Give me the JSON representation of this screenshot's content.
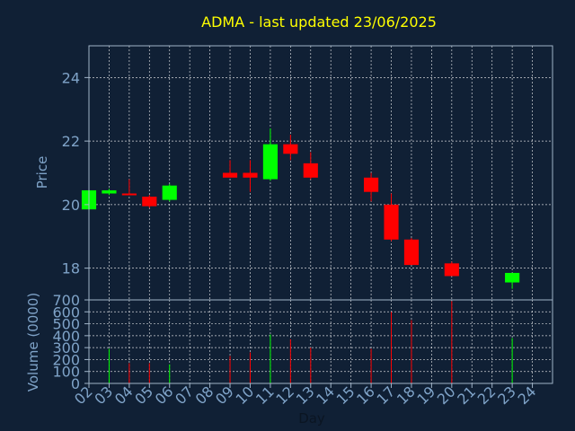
{
  "chart_data": [
    {
      "type": "candlestick",
      "title": "ADMA - last updated 23/06/2025",
      "ylabel": "Price",
      "ylim": [
        17,
        25
      ],
      "yticks": [
        18,
        20,
        22,
        24
      ],
      "grid": true,
      "colors": {
        "up": "#00ff00",
        "down": "#ff0000",
        "title": "#ffff00",
        "axis": "#7fa3c8",
        "background": "#102035"
      },
      "xticks": [
        "02",
        "03",
        "04",
        "05",
        "06",
        "07",
        "08",
        "09",
        "10",
        "11",
        "12",
        "13",
        "14",
        "15",
        "16",
        "17",
        "18",
        "19",
        "20",
        "21",
        "22",
        "23",
        "24"
      ],
      "candles": [
        {
          "day": "02",
          "open": 19.85,
          "high": 20.45,
          "low": 19.8,
          "close": 20.45
        },
        {
          "day": "03",
          "open": 20.35,
          "high": 20.5,
          "low": 20.3,
          "close": 20.45
        },
        {
          "day": "04",
          "open": 20.35,
          "high": 20.8,
          "low": 20.3,
          "close": 20.3
        },
        {
          "day": "05",
          "open": 20.25,
          "high": 20.3,
          "low": 19.9,
          "close": 19.95
        },
        {
          "day": "06",
          "open": 20.15,
          "high": 20.65,
          "low": 20.1,
          "close": 20.6
        },
        {
          "day": "09",
          "open": 21.0,
          "high": 21.4,
          "low": 20.85,
          "close": 20.85
        },
        {
          "day": "10",
          "open": 21.0,
          "high": 21.4,
          "low": 20.4,
          "close": 20.85
        },
        {
          "day": "11",
          "open": 20.8,
          "high": 22.4,
          "low": 20.75,
          "close": 21.9
        },
        {
          "day": "12",
          "open": 21.9,
          "high": 22.2,
          "low": 21.4,
          "close": 21.6
        },
        {
          "day": "13",
          "open": 21.3,
          "high": 21.65,
          "low": 20.8,
          "close": 20.85
        },
        {
          "day": "16",
          "open": 20.85,
          "high": 21.0,
          "low": 20.1,
          "close": 20.4
        },
        {
          "day": "17",
          "open": 20.0,
          "high": 20.35,
          "low": 18.85,
          "close": 18.9
        },
        {
          "day": "18",
          "open": 18.9,
          "high": 18.95,
          "low": 18.1,
          "close": 18.1
        },
        {
          "day": "20",
          "open": 18.15,
          "high": 18.2,
          "low": 17.75,
          "close": 17.75
        },
        {
          "day": "23",
          "open": 17.55,
          "high": 17.85,
          "low": 17.35,
          "close": 17.85
        }
      ]
    },
    {
      "type": "bar",
      "xlabel": "Day",
      "ylabel": "Volume (0000)",
      "ylim": [
        0,
        700
      ],
      "yticks": [
        0,
        100,
        200,
        300,
        400,
        500,
        600,
        700
      ],
      "grid": true,
      "categories": [
        "02",
        "03",
        "04",
        "05",
        "06",
        "09",
        "10",
        "11",
        "12",
        "13",
        "16",
        "17",
        "18",
        "20",
        "23"
      ],
      "values": [
        20,
        290,
        170,
        170,
        160,
        230,
        260,
        410,
        370,
        300,
        290,
        600,
        530,
        690,
        380
      ],
      "directions": [
        "up",
        "up",
        "down",
        "down",
        "up",
        "down",
        "down",
        "up",
        "down",
        "down",
        "down",
        "down",
        "down",
        "down",
        "up"
      ]
    }
  ]
}
